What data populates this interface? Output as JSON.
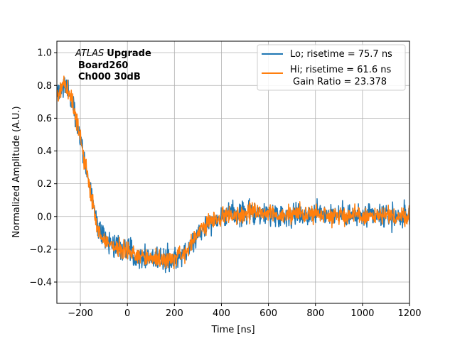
{
  "chart_data": {
    "type": "line",
    "xlabel": "Time [ns]",
    "ylabel": "Normalized Amplitude (A.U.)",
    "xlim": [
      -300,
      1200
    ],
    "ylim": [
      -0.53,
      1.07
    ],
    "xticks": [
      -200,
      0,
      200,
      400,
      600,
      800,
      1000,
      1200
    ],
    "yticks": [
      -0.4,
      -0.2,
      0.0,
      0.2,
      0.4,
      0.6,
      0.8,
      1.0
    ],
    "xtick_labels": [
      "−200",
      "0",
      "200",
      "400",
      "600",
      "800",
      "1000",
      "1200"
    ],
    "ytick_labels": [
      "−0.4",
      "−0.2",
      "0.0",
      "0.2",
      "0.4",
      "0.6",
      "0.8",
      "1.0"
    ],
    "grid": true,
    "legend_position": "top-right",
    "annotation": {
      "italic": "ATLAS",
      "bold": "Upgrade",
      "line2": "Board260",
      "line3": "Ch000 30dB"
    },
    "series": [
      {
        "name": "Lo; risetime = 75.7 ns",
        "color": "#1f77b4",
        "noise": 0.05,
        "x": [
          -290,
          -270,
          -250,
          -230,
          -210,
          -190,
          -170,
          -150,
          -130,
          -100,
          -50,
          0,
          50,
          100,
          150,
          200,
          250,
          300,
          350,
          400,
          500,
          600,
          700,
          800,
          900,
          1000,
          1100,
          1200
        ],
        "y": [
          0.76,
          0.82,
          0.76,
          0.68,
          0.55,
          0.4,
          0.25,
          0.1,
          -0.05,
          -0.14,
          -0.18,
          -0.21,
          -0.24,
          -0.25,
          -0.26,
          -0.26,
          -0.22,
          -0.1,
          -0.03,
          0.0,
          0.02,
          0.02,
          0.01,
          0.02,
          0.01,
          0.0,
          0.0,
          0.0
        ]
      },
      {
        "name": "Hi; risetime = 61.6 ns",
        "extra": "Gain Ratio = 23.378",
        "color": "#ff7f0e",
        "noise": 0.04,
        "x": [
          -290,
          -270,
          -250,
          -230,
          -210,
          -190,
          -170,
          -150,
          -130,
          -100,
          -50,
          0,
          50,
          100,
          150,
          200,
          250,
          300,
          350,
          400,
          500,
          600,
          700,
          800,
          900,
          1000,
          1100,
          1200
        ],
        "y": [
          0.76,
          0.82,
          0.76,
          0.68,
          0.55,
          0.4,
          0.25,
          0.1,
          -0.05,
          -0.14,
          -0.18,
          -0.21,
          -0.24,
          -0.25,
          -0.26,
          -0.26,
          -0.22,
          -0.1,
          -0.03,
          0.0,
          0.02,
          0.02,
          0.01,
          0.02,
          0.01,
          0.0,
          0.0,
          0.0
        ]
      }
    ]
  }
}
